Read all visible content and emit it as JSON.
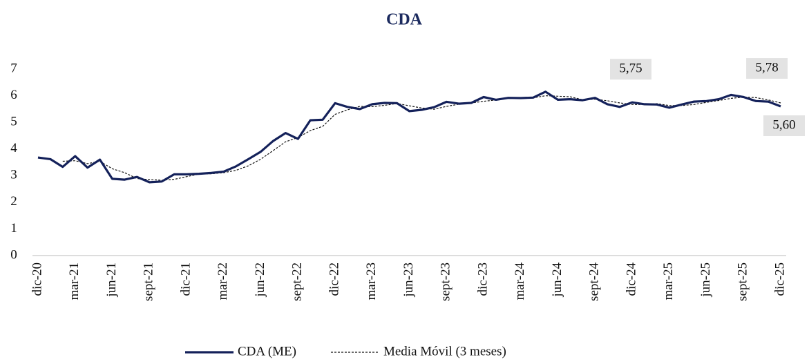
{
  "chart_data": {
    "type": "line",
    "title": "CDA",
    "categories": [
      "dic-20",
      null,
      null,
      "mar-21",
      null,
      null,
      "jun-21",
      null,
      null,
      "sept-21",
      null,
      null,
      "dic-21",
      null,
      null,
      "mar-22",
      null,
      null,
      "jun-22",
      null,
      null,
      "sept-22",
      null,
      null,
      "dic-22",
      null,
      null,
      "mar-23",
      null,
      null,
      "jun-23",
      null,
      null,
      "sept-23",
      null,
      null,
      "dic-23",
      null,
      null,
      "mar-24",
      null,
      null,
      "jun-24",
      null,
      null,
      "sept-24",
      null,
      null,
      "dic-24",
      null,
      null,
      "mar-25",
      null,
      null,
      "jun-25",
      null,
      null,
      "sept-25",
      null,
      null,
      "dic-25"
    ],
    "series": [
      {
        "name": "CDA (ME)",
        "color": "#14215a",
        "style": "solid",
        "values": [
          3.68,
          3.62,
          3.33,
          3.73,
          3.3,
          3.6,
          2.88,
          2.85,
          2.95,
          2.75,
          2.78,
          3.05,
          3.05,
          3.07,
          3.1,
          3.15,
          3.35,
          3.62,
          3.9,
          4.3,
          4.6,
          4.38,
          5.08,
          5.1,
          5.72,
          5.58,
          5.5,
          5.68,
          5.73,
          5.72,
          5.42,
          5.47,
          5.57,
          5.77,
          5.7,
          5.73,
          5.95,
          5.85,
          5.92,
          5.91,
          5.93,
          6.15,
          5.85,
          5.87,
          5.83,
          5.92,
          5.68,
          5.58,
          5.75,
          5.68,
          5.67,
          5.55,
          5.67,
          5.78,
          5.8,
          5.87,
          6.03,
          5.95,
          5.8,
          5.78,
          5.6
        ],
        "value_labels": [
          null,
          null,
          null,
          null,
          null,
          null,
          null,
          null,
          null,
          null,
          null,
          null,
          null,
          null,
          null,
          null,
          null,
          null,
          null,
          null,
          null,
          null,
          null,
          null,
          null,
          null,
          null,
          null,
          null,
          null,
          null,
          null,
          null,
          null,
          null,
          null,
          null,
          null,
          null,
          null,
          null,
          null,
          null,
          null,
          null,
          null,
          null,
          null,
          "5,75",
          null,
          null,
          null,
          null,
          null,
          null,
          null,
          null,
          null,
          null,
          "5,78",
          "5,60"
        ]
      },
      {
        "name": "Media Móvil (3 meses)",
        "color": "#111111",
        "style": "dashed",
        "values": [
          null,
          null,
          3.54,
          3.56,
          3.45,
          3.54,
          3.26,
          3.11,
          2.89,
          2.85,
          2.83,
          2.86,
          2.96,
          3.06,
          3.07,
          3.11,
          3.2,
          3.37,
          3.62,
          3.94,
          4.27,
          4.43,
          4.69,
          4.85,
          5.3,
          5.47,
          5.6,
          5.59,
          5.64,
          5.71,
          5.62,
          5.54,
          5.49,
          5.6,
          5.68,
          5.73,
          5.79,
          5.84,
          5.91,
          5.89,
          5.92,
          6.0,
          5.98,
          5.96,
          5.85,
          5.87,
          5.81,
          5.73,
          5.67,
          5.67,
          5.7,
          5.63,
          5.63,
          5.67,
          5.75,
          5.82,
          5.9,
          5.95,
          5.93,
          5.84,
          5.73
        ]
      }
    ],
    "ylim": [
      0,
      7
    ],
    "yticks": [
      0,
      1,
      2,
      3,
      4,
      5,
      6,
      7
    ],
    "grid": false,
    "legend": "bottom"
  }
}
